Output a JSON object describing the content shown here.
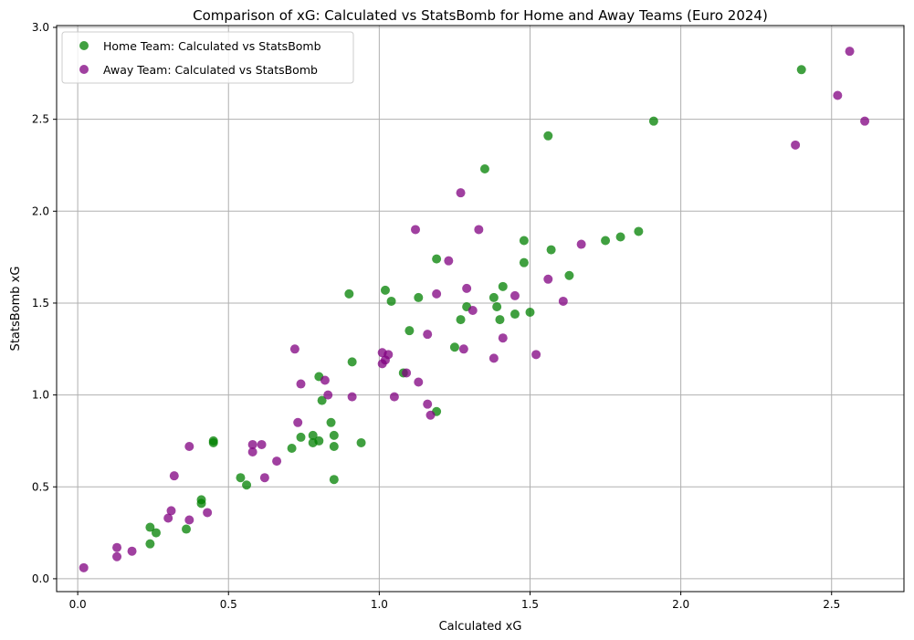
{
  "chart_data": {
    "type": "scatter",
    "title": "Comparison of xG: Calculated vs StatsBomb for Home and Away Teams (Euro 2024)",
    "xlabel": "Calculated xG",
    "ylabel": "StatsBomb xG",
    "xlim": [
      -0.07,
      2.74
    ],
    "ylim": [
      -0.07,
      3.01
    ],
    "xticks": [
      0.0,
      0.5,
      1.0,
      1.5,
      2.0,
      2.5
    ],
    "xtick_labels": [
      "0.0",
      "0.5",
      "1.0",
      "1.5",
      "2.0",
      "2.5"
    ],
    "yticks": [
      0.0,
      0.5,
      1.0,
      1.5,
      2.0,
      2.5,
      3.0
    ],
    "ytick_labels": [
      "0.0",
      "0.5",
      "1.0",
      "1.5",
      "2.0",
      "2.5",
      "3.0"
    ],
    "grid": true,
    "legend_position": "top-left",
    "series": [
      {
        "name": "Home Team: Calculated vs StatsBomb",
        "color": "#008000",
        "points": [
          [
            0.24,
            0.28
          ],
          [
            0.26,
            0.25
          ],
          [
            0.24,
            0.19
          ],
          [
            0.36,
            0.27
          ],
          [
            0.41,
            0.43
          ],
          [
            0.41,
            0.41
          ],
          [
            0.45,
            0.74
          ],
          [
            0.45,
            0.75
          ],
          [
            0.54,
            0.55
          ],
          [
            0.56,
            0.51
          ],
          [
            0.71,
            0.71
          ],
          [
            0.74,
            0.77
          ],
          [
            0.78,
            0.78
          ],
          [
            0.78,
            0.74
          ],
          [
            0.8,
            0.75
          ],
          [
            0.8,
            1.1
          ],
          [
            0.81,
            0.97
          ],
          [
            0.84,
            0.85
          ],
          [
            0.85,
            0.72
          ],
          [
            0.85,
            0.78
          ],
          [
            0.85,
            0.54
          ],
          [
            0.9,
            1.55
          ],
          [
            0.91,
            1.18
          ],
          [
            0.94,
            0.74
          ],
          [
            1.02,
            1.57
          ],
          [
            1.04,
            1.51
          ],
          [
            1.08,
            1.12
          ],
          [
            1.1,
            1.35
          ],
          [
            1.13,
            1.53
          ],
          [
            1.19,
            1.74
          ],
          [
            1.19,
            0.91
          ],
          [
            1.25,
            1.26
          ],
          [
            1.27,
            1.41
          ],
          [
            1.29,
            1.48
          ],
          [
            1.35,
            2.23
          ],
          [
            1.38,
            1.53
          ],
          [
            1.39,
            1.48
          ],
          [
            1.4,
            1.41
          ],
          [
            1.41,
            1.59
          ],
          [
            1.45,
            1.44
          ],
          [
            1.48,
            1.72
          ],
          [
            1.48,
            1.84
          ],
          [
            1.5,
            1.45
          ],
          [
            1.56,
            2.41
          ],
          [
            1.57,
            1.79
          ],
          [
            1.63,
            1.65
          ],
          [
            1.75,
            1.84
          ],
          [
            1.8,
            1.86
          ],
          [
            1.86,
            1.89
          ],
          [
            1.91,
            2.49
          ],
          [
            2.4,
            2.77
          ]
        ]
      },
      {
        "name": "Away Team: Calculated vs StatsBomb",
        "color": "#800080",
        "points": [
          [
            0.02,
            0.06
          ],
          [
            0.13,
            0.17
          ],
          [
            0.13,
            0.12
          ],
          [
            0.18,
            0.15
          ],
          [
            0.3,
            0.33
          ],
          [
            0.31,
            0.37
          ],
          [
            0.32,
            0.56
          ],
          [
            0.37,
            0.72
          ],
          [
            0.37,
            0.32
          ],
          [
            0.43,
            0.36
          ],
          [
            0.58,
            0.69
          ],
          [
            0.58,
            0.73
          ],
          [
            0.61,
            0.73
          ],
          [
            0.62,
            0.55
          ],
          [
            0.66,
            0.64
          ],
          [
            0.72,
            1.25
          ],
          [
            0.73,
            0.85
          ],
          [
            0.74,
            1.06
          ],
          [
            0.82,
            1.08
          ],
          [
            0.83,
            1.0
          ],
          [
            0.91,
            0.99
          ],
          [
            1.01,
            1.17
          ],
          [
            1.01,
            1.23
          ],
          [
            1.02,
            1.19
          ],
          [
            1.03,
            1.22
          ],
          [
            1.05,
            0.99
          ],
          [
            1.09,
            1.12
          ],
          [
            1.12,
            1.9
          ],
          [
            1.13,
            1.07
          ],
          [
            1.16,
            0.95
          ],
          [
            1.16,
            1.33
          ],
          [
            1.17,
            0.89
          ],
          [
            1.19,
            1.55
          ],
          [
            1.23,
            1.73
          ],
          [
            1.27,
            2.1
          ],
          [
            1.28,
            1.25
          ],
          [
            1.29,
            1.58
          ],
          [
            1.31,
            1.46
          ],
          [
            1.33,
            1.9
          ],
          [
            1.38,
            1.2
          ],
          [
            1.41,
            1.31
          ],
          [
            1.45,
            1.54
          ],
          [
            1.52,
            1.22
          ],
          [
            1.56,
            1.63
          ],
          [
            1.61,
            1.51
          ],
          [
            1.67,
            1.82
          ],
          [
            2.38,
            2.36
          ],
          [
            2.52,
            2.63
          ],
          [
            2.56,
            2.87
          ],
          [
            2.61,
            2.49
          ]
        ]
      }
    ]
  }
}
